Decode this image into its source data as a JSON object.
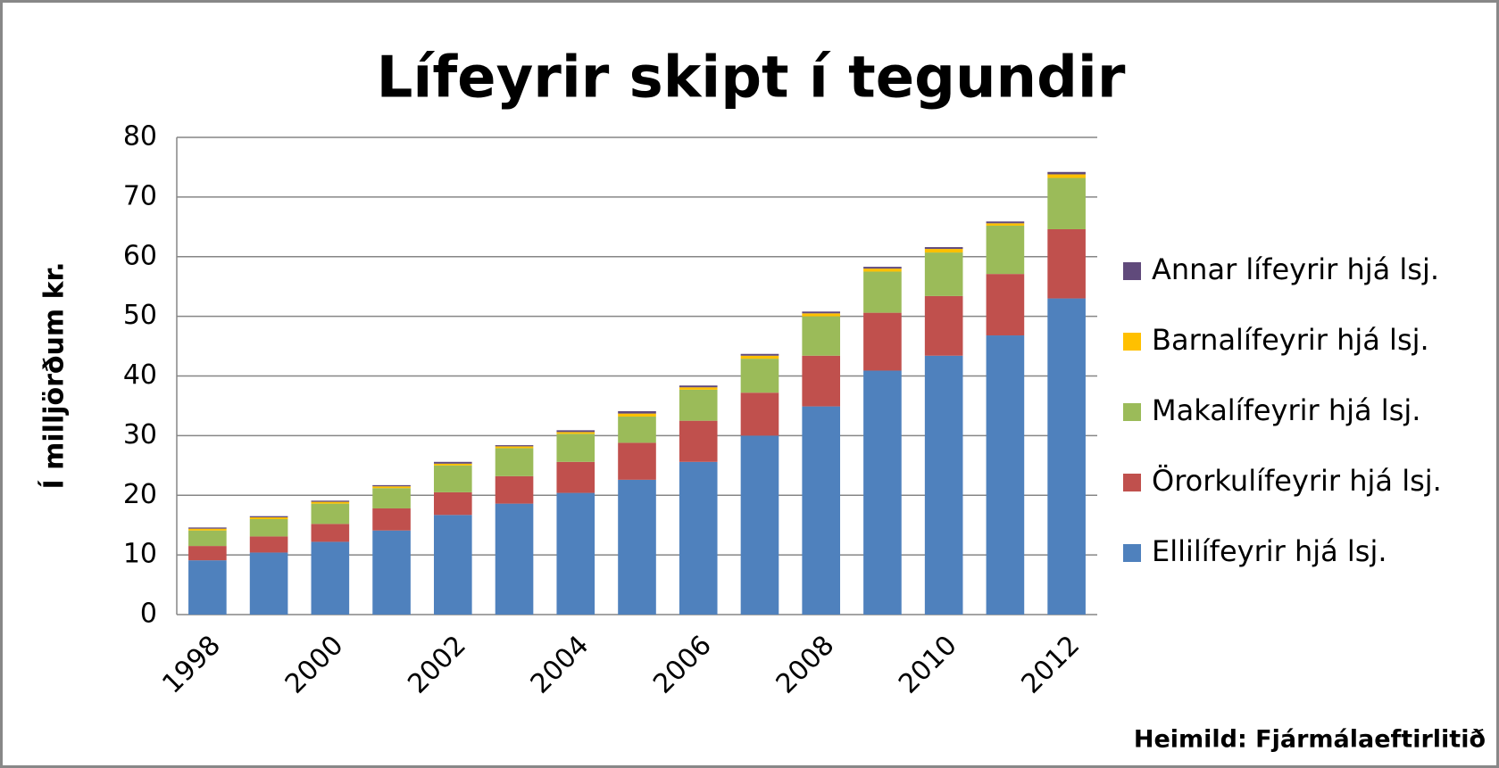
{
  "chart_data": {
    "type": "stacked_bar",
    "title": "Lífeyrir skipt í tegundir",
    "y_label": "Í milljörðum kr.",
    "source": "Heimild: Fjármálaeftirlitið",
    "categories": [
      "1998",
      null,
      "2000",
      null,
      "2002",
      null,
      "2004",
      null,
      "2006",
      null,
      "2008",
      null,
      "2010",
      null,
      "2012"
    ],
    "series": [
      {
        "name": "Ellilífeyrir hjá lsj.",
        "color": "#4f81bd",
        "values": [
          9.1,
          10.4,
          12.2,
          14.1,
          16.7,
          18.6,
          20.4,
          22.6,
          25.6,
          30.0,
          34.9,
          40.9,
          43.4,
          46.8,
          53.0
        ]
      },
      {
        "name": "Örorkulífeyrir hjá lsj.",
        "color": "#c0504d",
        "values": [
          2.4,
          2.7,
          3.0,
          3.7,
          3.8,
          4.6,
          5.2,
          6.2,
          6.9,
          7.2,
          8.5,
          9.7,
          10.0,
          10.3,
          11.6
        ]
      },
      {
        "name": "Makalífeyrir hjá lsj.",
        "color": "#9bbb59",
        "values": [
          2.6,
          2.9,
          3.4,
          3.4,
          4.5,
          4.7,
          4.7,
          4.4,
          5.2,
          5.7,
          6.6,
          6.9,
          7.3,
          8.1,
          8.6
        ]
      },
      {
        "name": "Barnalífeyrir hjá lsj.",
        "color": "#ffc000",
        "values": [
          0.3,
          0.3,
          0.3,
          0.3,
          0.3,
          0.3,
          0.3,
          0.5,
          0.4,
          0.5,
          0.5,
          0.5,
          0.6,
          0.4,
          0.6
        ]
      },
      {
        "name": "Annar lífeyrir hjá lsj.",
        "color": "#604a7b",
        "values": [
          0.2,
          0.2,
          0.2,
          0.2,
          0.3,
          0.2,
          0.3,
          0.4,
          0.3,
          0.3,
          0.3,
          0.3,
          0.3,
          0.3,
          0.4
        ]
      }
    ],
    "ylim": [
      0,
      80
    ],
    "yticks": [
      0,
      10,
      20,
      30,
      40,
      50,
      60,
      70,
      80
    ],
    "grid": true
  }
}
